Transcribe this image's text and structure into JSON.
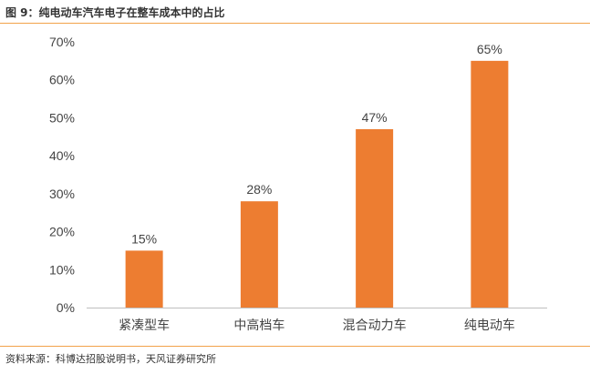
{
  "figure": {
    "title": "图 9：纯电动车汽车电子在整车成本中的占比",
    "source": "资料来源：科博达招股说明书，天风证券研究所"
  },
  "colors": {
    "bar": "#ED7D31",
    "rule": "#F2A24A",
    "axis": "#BFBFBF"
  },
  "chart_data": {
    "type": "bar",
    "categories": [
      "紧凑型车",
      "中高档车",
      "混合动力车",
      "纯电动车"
    ],
    "values": [
      15,
      28,
      47,
      65
    ],
    "data_labels": [
      "15%",
      "28%",
      "47%",
      "65%"
    ],
    "yticks": [
      "0%",
      "10%",
      "20%",
      "30%",
      "40%",
      "50%",
      "60%",
      "70%"
    ],
    "ylim": [
      0,
      70
    ],
    "grid": false,
    "legend": "none"
  }
}
